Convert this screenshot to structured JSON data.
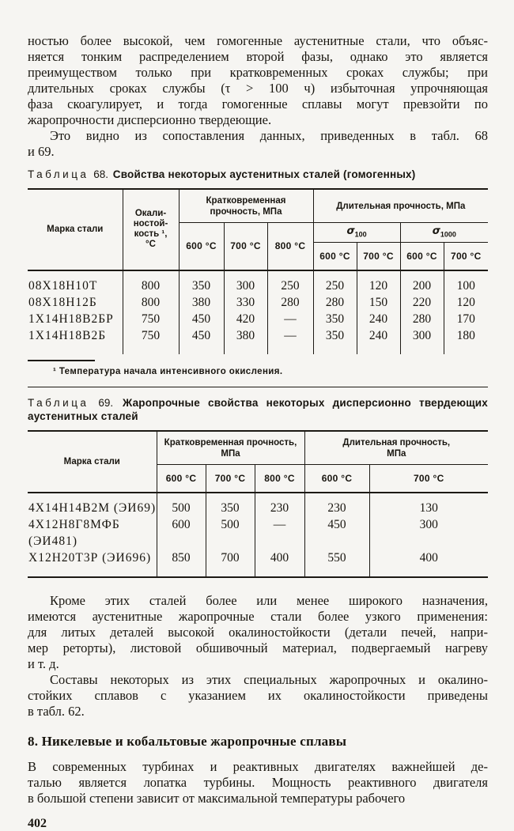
{
  "page": {
    "number": "402"
  },
  "paragraph1": {
    "lines": [
      "ностью более высокой, чем гомогенные аустенитные стали, что объяс-",
      "няется тонким распределением второй фазы, однако это является",
      "преимуществом только при кратковременных сроках службы; при",
      "длительных сроках службы (τ > 100 ч) избыточная упрочняющая",
      "фаза скоагулирует, и тогда гомогенные сплавы могут превзойти по",
      "жаропрочности  дисперсионно  твердеющие."
    ]
  },
  "paragraph2": {
    "lines": [
      "Это видно из сопоставления данных, приведенных в табл. 68",
      "и 69."
    ]
  },
  "table68": {
    "label_word": "Таблица",
    "label_num": "68.",
    "title": "Свойства некоторых аустенитных сталей (гомогенных)",
    "header": {
      "marka": "Марка стали",
      "okalina_lines": [
        "Окали-",
        "ностой-",
        "кость ¹,",
        "°С"
      ],
      "group_short_lines": [
        "Кратковременная",
        "прочность, МПа"
      ],
      "group_long": "Длительная прочность, МПа",
      "sigma100": {
        "base": "σ",
        "sub": "100"
      },
      "sigma1000": {
        "base": "σ",
        "sub": "1000"
      },
      "temp600": "600 °С",
      "temp700": "700 °С",
      "temp800": "800 °С"
    },
    "rows": [
      [
        "08Х18Н10Т",
        "800",
        "350",
        "300",
        "250",
        "250",
        "120",
        "200",
        "100"
      ],
      [
        "08Х18Н12Б",
        "800",
        "380",
        "330",
        "280",
        "280",
        "150",
        "220",
        "120"
      ],
      [
        "1Х14Н18В2БР",
        "750",
        "450",
        "420",
        "—",
        "350",
        "240",
        "280",
        "170"
      ],
      [
        "1Х14Н18В2Б",
        "750",
        "450",
        "380",
        "—",
        "350",
        "240",
        "300",
        "180"
      ]
    ],
    "footnote": "¹ Температура начала интенсивного окисления."
  },
  "table69": {
    "label_word": "Таблица",
    "label_num": "69.",
    "title": "Жаропрочные свойства некоторых дисперсионно твердеющих аустенитных сталей",
    "header": {
      "marka": "Марка стали",
      "group_short_lines": [
        "Кратковременная прочность,",
        "МПа"
      ],
      "group_long_lines": [
        "Длительная прочность,",
        "МПа"
      ],
      "temp600": "600 °С",
      "temp700": "700 °С",
      "temp800": "800 °С"
    },
    "rows": [
      [
        "4Х14Н14В2М (ЭИ69)",
        "500",
        "350",
        "230",
        "230",
        "130"
      ],
      [
        "4Х12Н8Г8МФБ (ЭИ481)",
        "600",
        "500",
        "—",
        "450",
        "300"
      ],
      [
        "Х12Н20Т3Р (ЭИ696)",
        "850",
        "700",
        "400",
        "550",
        "400"
      ]
    ]
  },
  "paragraph3": {
    "lines": [
      "Кроме этих сталей более или менее широкого назначения,",
      "имеются аустенитные жаропрочные стали более узкого применения:",
      "для литых деталей высокой окалиностойкости (детали печей, напри-",
      "мер реторты), листовой обшивочный материал, подвергаемый нагреву",
      "и т. д."
    ]
  },
  "paragraph4": {
    "lines": [
      "Составы некоторых из этих специальных жаропрочных и окалино-",
      "стойких сплавов с указанием их окалиностойкости приведены",
      "в табл. 62."
    ]
  },
  "section_heading": "8. Никелевые и кобальтовые жаропрочные сплавы",
  "paragraph5": {
    "lines": [
      "В современных турбинах и реактивных двигателях важнейшей де-",
      "талью является лопатка турбины. Мощность реактивного двигателя",
      "в большой степени зависит от максимальной температуры рабочего"
    ]
  }
}
